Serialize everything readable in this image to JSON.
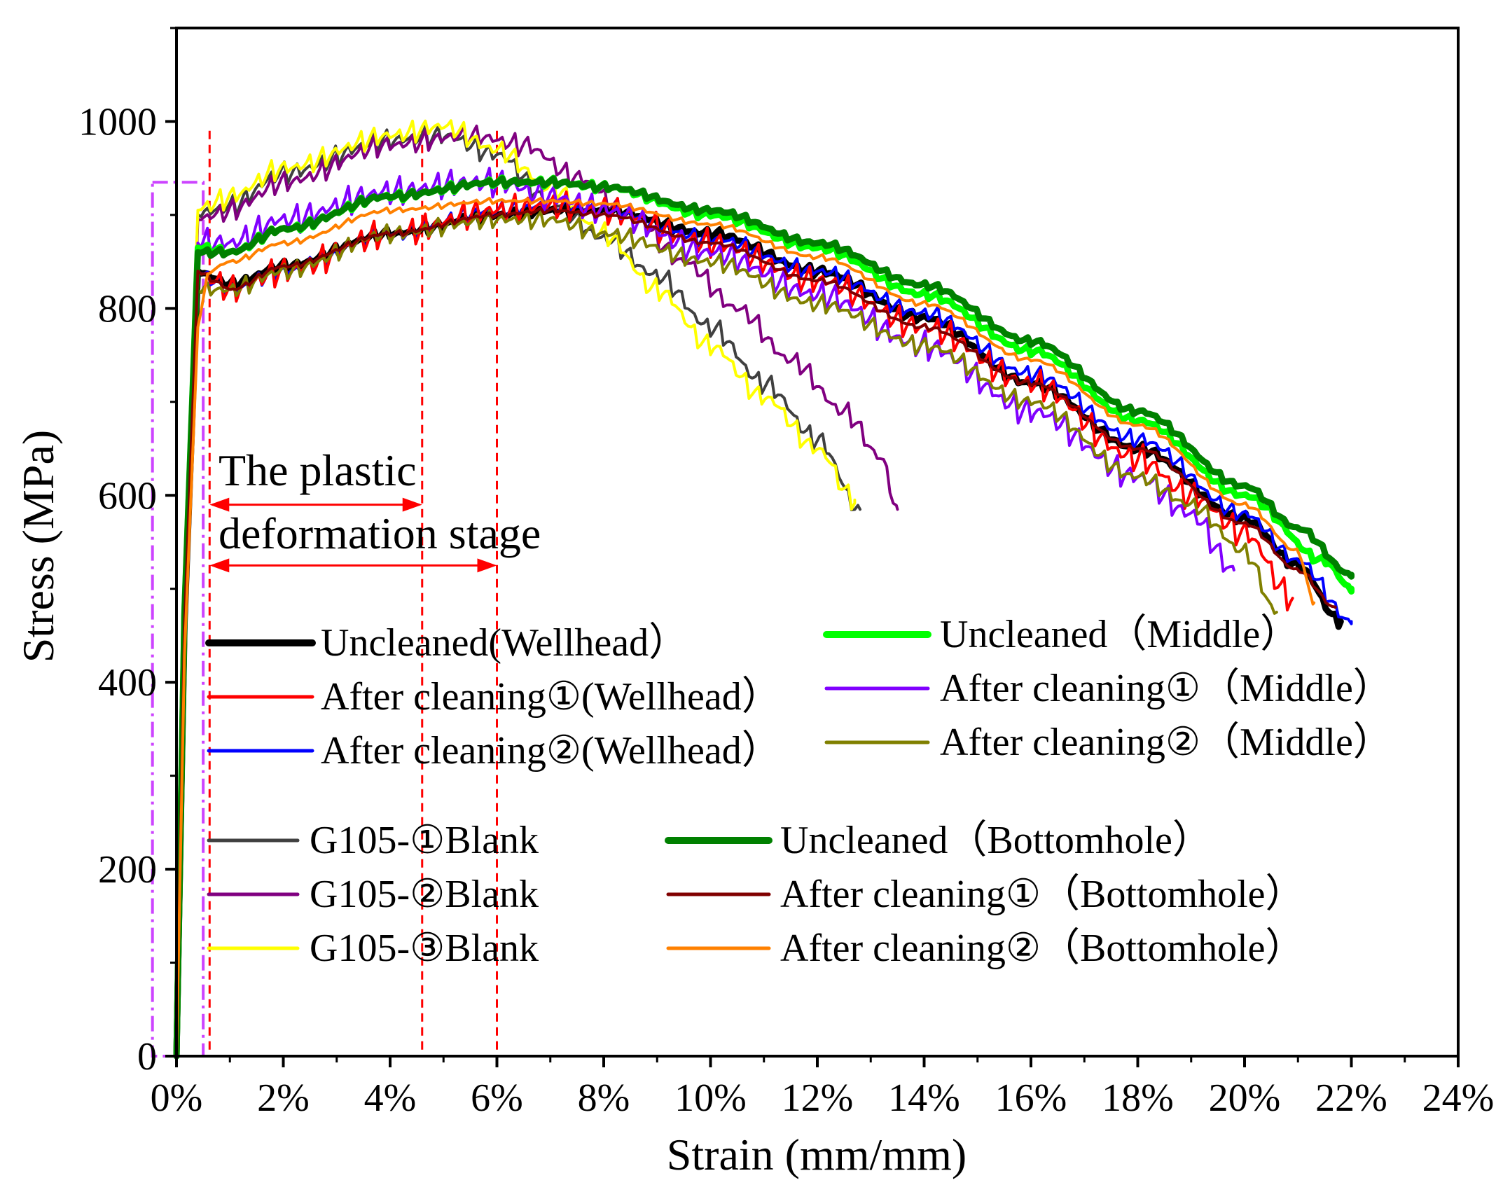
{
  "chart_data": {
    "type": "line",
    "xlabel": "Strain (mm/mm)",
    "ylabel": "Stress (MPa)",
    "xlim": [
      0,
      24
    ],
    "ylim": [
      0,
      1100
    ],
    "x_ticks": [
      {
        "value": 0,
        "label": "0%"
      },
      {
        "value": 2,
        "label": "2%"
      },
      {
        "value": 4,
        "label": "4%"
      },
      {
        "value": 6,
        "label": "6%"
      },
      {
        "value": 8,
        "label": "8%"
      },
      {
        "value": 10,
        "label": "10%"
      },
      {
        "value": 12,
        "label": "12%"
      },
      {
        "value": 14,
        "label": "14%"
      },
      {
        "value": 16,
        "label": "16%"
      },
      {
        "value": 18,
        "label": "18%"
      },
      {
        "value": 20,
        "label": "20%"
      },
      {
        "value": 22,
        "label": "22%"
      },
      {
        "value": 24,
        "label": "24%"
      }
    ],
    "y_ticks": [
      {
        "value": 0,
        "label": "0"
      },
      {
        "value": 200,
        "label": "200"
      },
      {
        "value": 400,
        "label": "400"
      },
      {
        "value": 600,
        "label": "600"
      },
      {
        "value": 800,
        "label": "800"
      },
      {
        "value": 1000,
        "label": "1000"
      }
    ],
    "annotation": {
      "line1": "The plastic",
      "line2": "deformation stage",
      "vlines_x": [
        0.62,
        4.6,
        6.0
      ],
      "arrows": [
        {
          "from": 0.62,
          "to": 4.6,
          "y": 590
        },
        {
          "from": 0.62,
          "to": 6.0,
          "y": 525
        }
      ],
      "elastic_box": {
        "x0": -0.45,
        "x1": 0.5,
        "y0": 0,
        "y1": 935
      }
    },
    "series": [
      {
        "name": "Uncleaned(Wellhead)",
        "color": "#000000",
        "width": 9,
        "noise": 6,
        "points": [
          [
            0,
            0
          ],
          [
            0.4,
            840
          ],
          [
            1,
            825
          ],
          [
            2,
            845
          ],
          [
            4,
            880
          ],
          [
            6,
            900
          ],
          [
            7,
            905
          ],
          [
            8,
            905
          ],
          [
            10,
            880
          ],
          [
            12,
            840
          ],
          [
            14,
            790
          ],
          [
            16,
            720
          ],
          [
            18,
            650
          ],
          [
            20,
            575
          ],
          [
            21,
            525
          ],
          [
            21.8,
            465
          ]
        ]
      },
      {
        "name": "After cleaning①(Wellhead)",
        "color": "#ff0000",
        "width": 4,
        "noise": 16,
        "points": [
          [
            0,
            0
          ],
          [
            0.4,
            840
          ],
          [
            1,
            820
          ],
          [
            2,
            840
          ],
          [
            4,
            880
          ],
          [
            6,
            905
          ],
          [
            7,
            910
          ],
          [
            8,
            905
          ],
          [
            10,
            870
          ],
          [
            12,
            830
          ],
          [
            14,
            780
          ],
          [
            16,
            720
          ],
          [
            18,
            640
          ],
          [
            19,
            600
          ],
          [
            20,
            560
          ],
          [
            20.9,
            490
          ]
        ]
      },
      {
        "name": "After cleaning②(Wellhead)",
        "color": "#0000ff",
        "width": 4,
        "noise": 10,
        "points": [
          [
            0,
            0
          ],
          [
            0.4,
            840
          ],
          [
            1,
            820
          ],
          [
            2,
            840
          ],
          [
            4,
            880
          ],
          [
            6,
            905
          ],
          [
            7,
            910
          ],
          [
            8,
            905
          ],
          [
            10,
            875
          ],
          [
            12,
            840
          ],
          [
            14,
            795
          ],
          [
            16,
            730
          ],
          [
            18,
            660
          ],
          [
            20,
            580
          ],
          [
            21,
            530
          ],
          [
            22,
            465
          ]
        ]
      },
      {
        "name": "Uncleaned（Middle）",
        "color": "#00ff00",
        "width": 9,
        "noise": 5,
        "points": [
          [
            0,
            0
          ],
          [
            0.4,
            865
          ],
          [
            1,
            860
          ],
          [
            2,
            885
          ],
          [
            4,
            920
          ],
          [
            6,
            935
          ],
          [
            7,
            935
          ],
          [
            8,
            930
          ],
          [
            10,
            900
          ],
          [
            12,
            865
          ],
          [
            14,
            815
          ],
          [
            16,
            755
          ],
          [
            18,
            680
          ],
          [
            20,
            600
          ],
          [
            21.5,
            530
          ],
          [
            22,
            500
          ]
        ]
      },
      {
        "name": "After cleaning①（Middle）",
        "color": "#8000ff",
        "width": 4,
        "noise": 16,
        "points": [
          [
            0,
            0
          ],
          [
            0.4,
            870
          ],
          [
            1,
            870
          ],
          [
            2,
            895
          ],
          [
            4,
            925
          ],
          [
            5.5,
            935
          ],
          [
            6,
            935
          ],
          [
            7,
            920
          ],
          [
            8,
            905
          ],
          [
            10,
            860
          ],
          [
            12,
            815
          ],
          [
            14,
            760
          ],
          [
            16,
            690
          ],
          [
            18,
            620
          ],
          [
            19,
            580
          ],
          [
            19.8,
            520
          ]
        ]
      },
      {
        "name": "After cleaning②（Middle）",
        "color": "#808000",
        "width": 4,
        "noise": 10,
        "points": [
          [
            0,
            0
          ],
          [
            0.4,
            820
          ],
          [
            1,
            820
          ],
          [
            2,
            840
          ],
          [
            4,
            880
          ],
          [
            6,
            895
          ],
          [
            7,
            895
          ],
          [
            8,
            880
          ],
          [
            10,
            850
          ],
          [
            12,
            805
          ],
          [
            14,
            760
          ],
          [
            16,
            700
          ],
          [
            18,
            620
          ],
          [
            19,
            590
          ],
          [
            20,
            540
          ],
          [
            20.6,
            475
          ]
        ]
      },
      {
        "name": "G105-①Blank",
        "color": "#404040",
        "width": 4,
        "noise": 12,
        "points": [
          [
            0,
            0
          ],
          [
            0.4,
            900
          ],
          [
            1,
            910
          ],
          [
            2,
            945
          ],
          [
            4,
            980
          ],
          [
            5,
            985
          ],
          [
            6,
            965
          ],
          [
            7,
            915
          ],
          [
            8,
            875
          ],
          [
            9,
            835
          ],
          [
            10,
            780
          ],
          [
            11,
            720
          ],
          [
            12,
            660
          ],
          [
            12.8,
            585
          ]
        ]
      },
      {
        "name": "G105-②Blank",
        "color": "#800080",
        "width": 4,
        "noise": 12,
        "points": [
          [
            0,
            0
          ],
          [
            0.4,
            895
          ],
          [
            1,
            905
          ],
          [
            2,
            935
          ],
          [
            4,
            975
          ],
          [
            5.5,
            985
          ],
          [
            6.5,
            975
          ],
          [
            7.5,
            940
          ],
          [
            8.5,
            900
          ],
          [
            9.5,
            850
          ],
          [
            10.5,
            800
          ],
          [
            11.5,
            745
          ],
          [
            12.5,
            690
          ],
          [
            13.2,
            640
          ],
          [
            13.5,
            585
          ]
        ]
      },
      {
        "name": "G105-③Blank",
        "color": "#ffff00",
        "width": 4,
        "noise": 12,
        "points": [
          [
            0,
            0
          ],
          [
            0.4,
            905
          ],
          [
            1,
            920
          ],
          [
            2,
            950
          ],
          [
            4,
            985
          ],
          [
            5,
            995
          ],
          [
            6,
            970
          ],
          [
            7,
            930
          ],
          [
            8,
            880
          ],
          [
            9,
            820
          ],
          [
            10,
            760
          ],
          [
            11,
            705
          ],
          [
            12,
            650
          ],
          [
            12.7,
            595
          ]
        ]
      },
      {
        "name": "Uncleaned（Bottomhole）",
        "color": "#008000",
        "width": 9,
        "noise": 4,
        "points": [
          [
            0,
            0
          ],
          [
            0.4,
            860
          ],
          [
            1,
            860
          ],
          [
            2,
            885
          ],
          [
            4,
            920
          ],
          [
            6,
            935
          ],
          [
            7,
            935
          ],
          [
            8,
            930
          ],
          [
            10,
            905
          ],
          [
            12,
            870
          ],
          [
            14,
            825
          ],
          [
            16,
            765
          ],
          [
            18,
            690
          ],
          [
            20,
            610
          ],
          [
            21,
            565
          ],
          [
            22,
            515
          ]
        ]
      },
      {
        "name": "After cleaning①（Bottomhole）",
        "color": "#800000",
        "width": 4,
        "noise": 3,
        "points": [
          [
            0,
            0
          ],
          [
            0.4,
            840
          ],
          [
            1,
            820
          ],
          [
            2,
            845
          ],
          [
            4,
            880
          ],
          [
            6,
            900
          ],
          [
            7,
            905
          ],
          [
            8,
            900
          ],
          [
            10,
            870
          ],
          [
            12,
            830
          ],
          [
            14,
            780
          ],
          [
            16,
            720
          ],
          [
            18,
            650
          ],
          [
            20,
            570
          ],
          [
            21,
            520
          ],
          [
            21.7,
            480
          ]
        ]
      },
      {
        "name": "After cleaning②（Bottomhole）",
        "color": "#ff8000",
        "width": 4,
        "noise": 3,
        "points": [
          [
            0,
            0
          ],
          [
            0.4,
            780
          ],
          [
            0.6,
            840
          ],
          [
            1,
            850
          ],
          [
            2,
            870
          ],
          [
            4,
            905
          ],
          [
            6,
            915
          ],
          [
            7,
            915
          ],
          [
            8,
            912
          ],
          [
            10,
            890
          ],
          [
            12,
            855
          ],
          [
            14,
            805
          ],
          [
            16,
            745
          ],
          [
            18,
            675
          ],
          [
            20,
            590
          ],
          [
            21,
            540
          ],
          [
            21.3,
            485
          ]
        ]
      }
    ],
    "legend": [
      {
        "label": "Uncleaned(Wellhead）"
      },
      {
        "label": "After cleaning①(Wellhead）"
      },
      {
        "label": "After cleaning②(Wellhead）"
      },
      {
        "label": "Uncleaned（Middle）"
      },
      {
        "label": "After cleaning①（Middle）"
      },
      {
        "label": "After cleaning②（Middle）"
      },
      {
        "label": "G105-①Blank"
      },
      {
        "label": "G105-②Blank"
      },
      {
        "label": "G105-③Blank"
      },
      {
        "label": "Uncleaned（Bottomhole）"
      },
      {
        "label": "After cleaning①（Bottomhole）"
      },
      {
        "label": "After cleaning②（Bottomhole）"
      }
    ]
  }
}
